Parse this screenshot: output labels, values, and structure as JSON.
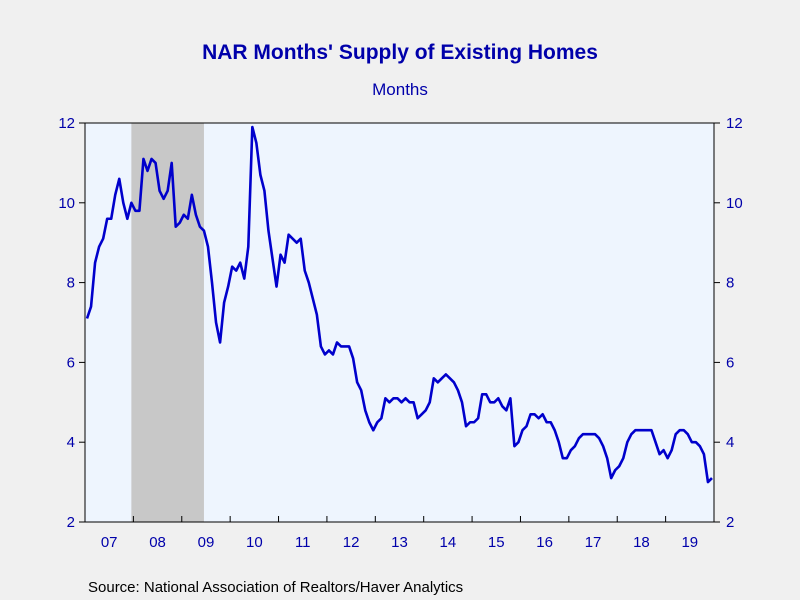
{
  "colors": {
    "background": "#f0f0f0",
    "plot_background": "#eef5fe",
    "line": "#0000cc",
    "text": "#0000aa",
    "recession_shade": "#c8c8c8",
    "axis": "#000000"
  },
  "chart_data": {
    "type": "line",
    "title": "NAR Months' Supply of Existing Homes",
    "subtitle": "Months",
    "source": "Source:  National Association of Realtors/Haver Analytics",
    "ylim": [
      2,
      12
    ],
    "yticks": [
      "2",
      "4",
      "6",
      "8",
      "10",
      "12"
    ],
    "y_axis_both_sides": true,
    "grid": false,
    "xlim": [
      "2007-01",
      "2019-12"
    ],
    "xtick_labels": [
      "07",
      "08",
      "09",
      "10",
      "11",
      "12",
      "13",
      "14",
      "15",
      "16",
      "17",
      "18",
      "19"
    ],
    "shaded_periods": [
      {
        "start": "2007-12",
        "end": "2009-06"
      }
    ],
    "series": [
      {
        "x": [
          "2007-01",
          "2007-02",
          "2007-03",
          "2007-04",
          "2007-05",
          "2007-06",
          "2007-07",
          "2007-08",
          "2007-09",
          "2007-10",
          "2007-11",
          "2007-12",
          "2008-01",
          "2008-02",
          "2008-03",
          "2008-04",
          "2008-05",
          "2008-06",
          "2008-07",
          "2008-08",
          "2008-09",
          "2008-10",
          "2008-11",
          "2008-12",
          "2009-01",
          "2009-02",
          "2009-03",
          "2009-04",
          "2009-05",
          "2009-06",
          "2009-07",
          "2009-08",
          "2009-09",
          "2009-10",
          "2009-11",
          "2009-12",
          "2010-01",
          "2010-02",
          "2010-03",
          "2010-04",
          "2010-05",
          "2010-06",
          "2010-07",
          "2010-08",
          "2010-09",
          "2010-10",
          "2010-11",
          "2010-12",
          "2011-01",
          "2011-02",
          "2011-03",
          "2011-04",
          "2011-05",
          "2011-06",
          "2011-07",
          "2011-08",
          "2011-09",
          "2011-10",
          "2011-11",
          "2011-12",
          "2012-01",
          "2012-02",
          "2012-03",
          "2012-04",
          "2012-05",
          "2012-06",
          "2012-07",
          "2012-08",
          "2012-09",
          "2012-10",
          "2012-11",
          "2012-12",
          "2013-01",
          "2013-02",
          "2013-03",
          "2013-04",
          "2013-05",
          "2013-06",
          "2013-07",
          "2013-08",
          "2013-09",
          "2013-10",
          "2013-11",
          "2013-12",
          "2014-01",
          "2014-02",
          "2014-03",
          "2014-04",
          "2014-05",
          "2014-06",
          "2014-07",
          "2014-08",
          "2014-09",
          "2014-10",
          "2014-11",
          "2014-12",
          "2015-01",
          "2015-02",
          "2015-03",
          "2015-04",
          "2015-05",
          "2015-06",
          "2015-07",
          "2015-08",
          "2015-09",
          "2015-10",
          "2015-11",
          "2015-12",
          "2016-01",
          "2016-02",
          "2016-03",
          "2016-04",
          "2016-05",
          "2016-06",
          "2016-07",
          "2016-08",
          "2016-09",
          "2016-10",
          "2016-11",
          "2016-12",
          "2017-01",
          "2017-02",
          "2017-03",
          "2017-04",
          "2017-05",
          "2017-06",
          "2017-07",
          "2017-08",
          "2017-09",
          "2017-10",
          "2017-11",
          "2017-12",
          "2018-01",
          "2018-02",
          "2018-03",
          "2018-04",
          "2018-05",
          "2018-06",
          "2018-07",
          "2018-08",
          "2018-09",
          "2018-10",
          "2018-11",
          "2018-12",
          "2019-01",
          "2019-02",
          "2019-03",
          "2019-04",
          "2019-05",
          "2019-06",
          "2019-07",
          "2019-08",
          "2019-09",
          "2019-10",
          "2019-11",
          "2019-12"
        ],
        "values": [
          7.1,
          7.4,
          8.5,
          8.9,
          9.1,
          9.6,
          9.6,
          10.2,
          10.6,
          10.0,
          9.6,
          10.0,
          9.8,
          9.8,
          11.1,
          10.8,
          11.1,
          11.0,
          10.3,
          10.1,
          10.3,
          11.0,
          9.4,
          9.5,
          9.7,
          9.6,
          10.2,
          9.7,
          9.4,
          9.3,
          8.9,
          8.0,
          7.0,
          6.5,
          7.5,
          7.9,
          8.4,
          8.3,
          8.5,
          8.1,
          8.9,
          11.9,
          11.5,
          10.7,
          10.3,
          9.3,
          8.6,
          7.9,
          8.7,
          8.5,
          9.2,
          9.1,
          9.0,
          9.1,
          8.3,
          8.0,
          7.6,
          7.2,
          6.4,
          6.2,
          6.3,
          6.2,
          6.5,
          6.4,
          6.4,
          6.4,
          6.1,
          5.5,
          5.3,
          4.8,
          4.5,
          4.3,
          4.5,
          4.6,
          5.1,
          5.0,
          5.1,
          5.1,
          5.0,
          5.1,
          5.0,
          5.0,
          4.6,
          4.7,
          4.8,
          5.0,
          5.6,
          5.5,
          5.6,
          5.7,
          5.6,
          5.5,
          5.3,
          5.0,
          4.4,
          4.5,
          4.5,
          4.6,
          5.2,
          5.2,
          5.0,
          5.0,
          5.1,
          4.9,
          4.8,
          5.1,
          3.9,
          4.0,
          4.3,
          4.4,
          4.7,
          4.7,
          4.6,
          4.7,
          4.5,
          4.5,
          4.3,
          4.0,
          3.6,
          3.6,
          3.8,
          3.9,
          4.1,
          4.2,
          4.2,
          4.2,
          4.2,
          4.1,
          3.9,
          3.6,
          3.1,
          3.3,
          3.4,
          3.6,
          4.0,
          4.2,
          4.3,
          4.3,
          4.3,
          4.3,
          4.3,
          4.0,
          3.7,
          3.8,
          3.6,
          3.8,
          4.2,
          4.3,
          4.3,
          4.2,
          4.0,
          4.0,
          3.9,
          3.7,
          3.0,
          3.1
        ]
      }
    ]
  }
}
